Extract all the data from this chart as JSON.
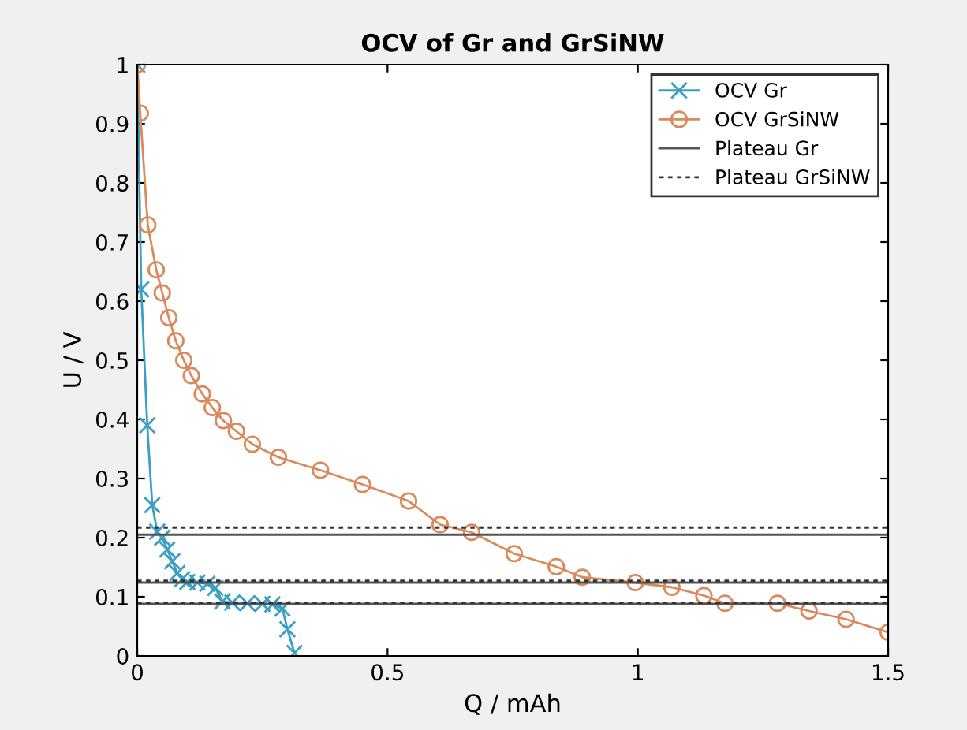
{
  "chart_data": {
    "type": "line",
    "title": "OCV of Gr and GrSiNW",
    "xlabel": "Q / mAh",
    "ylabel": "U / V",
    "xlim": [
      0,
      1.5
    ],
    "ylim": [
      0,
      1
    ],
    "xticks": [
      0,
      0.5,
      1,
      1.5
    ],
    "yticks": [
      0,
      0.1,
      0.2,
      0.3,
      0.4,
      0.5,
      0.6,
      0.7,
      0.8,
      0.9,
      1
    ],
    "legend": "top right",
    "series": [
      {
        "name": "OCV Gr",
        "color": "#3a9fc4",
        "marker": "cross",
        "x": [
          0,
          0.008,
          0.02,
          0.03,
          0.04,
          0.05,
          0.06,
          0.07,
          0.08,
          0.09,
          0.1,
          0.12,
          0.14,
          0.156,
          0.17,
          0.19,
          0.22,
          0.25,
          0.27,
          0.29,
          0.3,
          0.314
        ],
        "values": [
          1,
          0.62,
          0.39,
          0.255,
          0.21,
          0.2,
          0.18,
          0.16,
          0.14,
          0.13,
          0.125,
          0.124,
          0.122,
          0.115,
          0.092,
          0.09,
          0.089,
          0.088,
          0.087,
          0.08,
          0.045,
          0.005
        ]
      },
      {
        "name": "OCV GrSiNW",
        "color": "#d9895a",
        "marker": "circle",
        "x": [
          0,
          0.006,
          0.021,
          0.038,
          0.05,
          0.063,
          0.077,
          0.093,
          0.108,
          0.13,
          0.15,
          0.172,
          0.198,
          0.23,
          0.282,
          0.366,
          0.45,
          0.542,
          0.605,
          0.668,
          0.753,
          0.837,
          0.889,
          0.995,
          1.068,
          1.132,
          1.174,
          1.279,
          1.342,
          1.416,
          1.5
        ],
        "values": [
          1,
          0.918,
          0.729,
          0.653,
          0.614,
          0.572,
          0.533,
          0.5,
          0.474,
          0.443,
          0.42,
          0.398,
          0.38,
          0.358,
          0.336,
          0.314,
          0.29,
          0.262,
          0.222,
          0.209,
          0.173,
          0.151,
          0.133,
          0.124,
          0.116,
          0.102,
          0.089,
          0.089,
          0.076,
          0.062,
          0.04
        ]
      }
    ],
    "ref_lines": [
      {
        "axis": "y",
        "value": 0.205,
        "label": "Plateau Gr",
        "color": "#555555",
        "line_style": "solid"
      },
      {
        "axis": "y",
        "value": 0.124,
        "color": "#555555",
        "line_style": "solid"
      },
      {
        "axis": "y",
        "value": 0.088,
        "color": "#555555",
        "line_style": "solid"
      },
      {
        "axis": "y",
        "value": 0.217,
        "label": "Plateau GrSiNW",
        "color": "#333333",
        "line_style": "dotted"
      },
      {
        "axis": "y",
        "value": 0.127,
        "color": "#333333",
        "line_style": "dotted"
      },
      {
        "axis": "y",
        "value": 0.09,
        "color": "#333333",
        "line_style": "dotted"
      }
    ]
  }
}
